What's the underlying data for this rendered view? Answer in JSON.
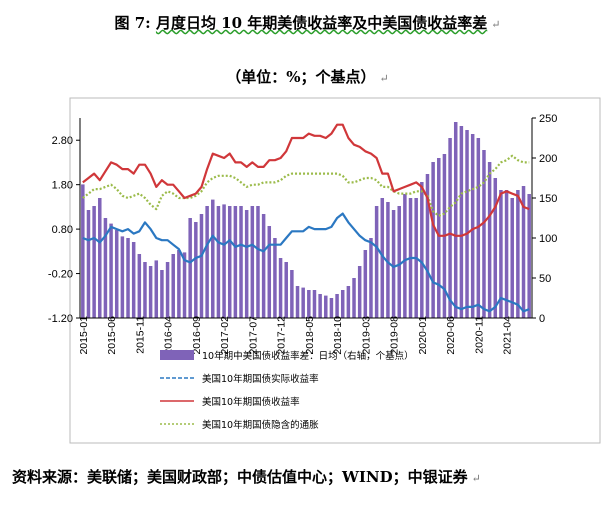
{
  "header": {
    "figure_label": "图 7:",
    "title_text": "月度日均 10 年期美债收益率及中美国债收益率差",
    "unit_text": "（单位：%；个基点）",
    "return_mark": "↵"
  },
  "footer": {
    "source_text": "资料来源：美联储；美国财政部；中债估值中心；WIND；中银证券"
  },
  "colors": {
    "bar": "#7f63b8",
    "actual_line": "#2b78c2",
    "nominal_line": "#d0373a",
    "implied_line": "#9bbb4a"
  },
  "chart_data": {
    "type": "bar+line",
    "x": [
      "2015-01",
      "2015-02",
      "2015-03",
      "2015-04",
      "2015-05",
      "2015-06",
      "2015-07",
      "2015-08",
      "2015-09",
      "2015-10",
      "2015-11",
      "2015-12",
      "2016-01",
      "2016-02",
      "2016-03",
      "2016-04",
      "2016-05",
      "2016-06",
      "2016-07",
      "2016-08",
      "2016-09",
      "2016-10",
      "2016-11",
      "2016-12",
      "2017-01",
      "2017-02",
      "2017-03",
      "2017-04",
      "2017-05",
      "2017-06",
      "2017-07",
      "2017-08",
      "2017-09",
      "2017-10",
      "2017-11",
      "2017-12",
      "2018-01",
      "2018-02",
      "2018-03",
      "2018-04",
      "2018-05",
      "2018-06",
      "2018-07",
      "2018-08",
      "2018-09",
      "2018-10",
      "2018-11",
      "2018-12",
      "2019-01",
      "2019-02",
      "2019-03",
      "2019-04",
      "2019-05",
      "2019-06",
      "2019-07",
      "2019-08",
      "2019-09",
      "2019-10",
      "2019-11",
      "2019-12",
      "2020-01",
      "2020-02",
      "2020-03",
      "2020-04",
      "2020-05",
      "2020-06",
      "2020-07",
      "2020-08",
      "2020-09",
      "2020-10",
      "2020-11",
      "2020-12",
      "2021-01",
      "2021-02",
      "2021-03",
      "2021-04",
      "2021-05",
      "2021-06",
      "2021-07",
      "2021-08"
    ],
    "x_tick_labels": [
      "2015-01",
      "2015-06",
      "2015-11",
      "2016-04",
      "2016-09",
      "2017-02",
      "2017-07",
      "2017-12",
      "2018-05",
      "2018-10",
      "2019-03",
      "2019-08",
      "2020-01",
      "2020-06",
      "2020-11",
      "2021-04"
    ],
    "left_axis": {
      "ticks": [
        "2.80",
        "1.80",
        "0.80",
        "-0.20",
        "-1.20"
      ],
      "ylim": [
        -1.2,
        3.3
      ]
    },
    "right_axis": {
      "ticks": [
        "250",
        "200",
        "150",
        "100",
        "50",
        "0"
      ],
      "ylim": [
        0,
        250
      ]
    },
    "series": [
      {
        "name": "10年期中美国债收益率差：日均（右轴，个基点）",
        "type": "bar",
        "axis": "right",
        "values": [
          167,
          135,
          140,
          150,
          125,
          118,
          110,
          102,
          100,
          95,
          80,
          70,
          65,
          72,
          60,
          70,
          80,
          85,
          82,
          125,
          120,
          130,
          140,
          148,
          140,
          142,
          140,
          140,
          140,
          135,
          140,
          140,
          130,
          115,
          100,
          75,
          70,
          60,
          40,
          38,
          35,
          35,
          30,
          28,
          25,
          30,
          35,
          40,
          50,
          65,
          85,
          100,
          140,
          150,
          145,
          135,
          140,
          155,
          150,
          150,
          170,
          180,
          195,
          200,
          205,
          225,
          245,
          240,
          235,
          230,
          225,
          210,
          195,
          175,
          160,
          160,
          150,
          160,
          165,
          155
        ]
      },
      {
        "name": "美国10年期国债实际收益率",
        "type": "line",
        "axis": "left",
        "values": [
          0.6,
          0.55,
          0.6,
          0.5,
          0.65,
          0.85,
          0.8,
          0.75,
          0.8,
          0.7,
          0.75,
          0.95,
          0.8,
          0.6,
          0.55,
          0.55,
          0.45,
          0.35,
          0.1,
          0.05,
          0.15,
          0.2,
          0.45,
          0.65,
          0.5,
          0.45,
          0.55,
          0.4,
          0.45,
          0.4,
          0.45,
          0.35,
          0.3,
          0.45,
          0.45,
          0.45,
          0.6,
          0.75,
          0.75,
          0.75,
          0.85,
          0.8,
          0.8,
          0.8,
          0.85,
          1.05,
          1.15,
          0.95,
          0.8,
          0.65,
          0.55,
          0.5,
          0.4,
          0.2,
          0.05,
          -0.05,
          0.0,
          0.1,
          0.15,
          0.15,
          0.05,
          -0.15,
          -0.4,
          -0.45,
          -0.55,
          -0.8,
          -0.95,
          -1.0,
          -0.95,
          -0.95,
          -0.9,
          -1.0,
          -1.05,
          -0.95,
          -0.75,
          -0.8,
          -0.85,
          -0.9,
          -1.05,
          -1.0
        ]
      },
      {
        "name": "美国10年期国债收益率",
        "type": "line",
        "axis": "left",
        "values": [
          1.85,
          1.95,
          2.05,
          1.9,
          2.1,
          2.3,
          2.25,
          2.15,
          2.15,
          2.05,
          2.25,
          2.25,
          2.05,
          1.75,
          1.9,
          1.8,
          1.8,
          1.65,
          1.5,
          1.55,
          1.6,
          1.75,
          2.15,
          2.5,
          2.45,
          2.4,
          2.5,
          2.3,
          2.3,
          2.2,
          2.3,
          2.2,
          2.2,
          2.35,
          2.35,
          2.4,
          2.55,
          2.85,
          2.85,
          2.85,
          2.95,
          2.9,
          2.9,
          2.85,
          2.95,
          3.15,
          3.15,
          2.85,
          2.7,
          2.65,
          2.55,
          2.5,
          2.4,
          2.05,
          2.05,
          1.65,
          1.7,
          1.75,
          1.8,
          1.85,
          1.75,
          1.5,
          0.9,
          0.65,
          0.65,
          0.7,
          0.65,
          0.65,
          0.7,
          0.8,
          0.85,
          0.95,
          1.1,
          1.3,
          1.6,
          1.65,
          1.6,
          1.55,
          1.3,
          1.25
        ]
      },
      {
        "name": "美国10年期国债隐含的通胀",
        "type": "line",
        "axis": "left",
        "values": [
          1.5,
          1.6,
          1.7,
          1.7,
          1.75,
          1.8,
          1.7,
          1.55,
          1.5,
          1.55,
          1.6,
          1.5,
          1.35,
          1.25,
          1.55,
          1.65,
          1.6,
          1.5,
          1.5,
          1.5,
          1.55,
          1.65,
          1.85,
          1.95,
          2.0,
          2.0,
          2.0,
          1.95,
          1.85,
          1.75,
          1.8,
          1.8,
          1.85,
          1.85,
          1.85,
          1.9,
          2.0,
          2.05,
          2.05,
          2.05,
          2.05,
          2.05,
          2.05,
          2.05,
          2.05,
          2.05,
          2.0,
          1.85,
          1.85,
          1.9,
          1.95,
          1.95,
          1.9,
          1.75,
          1.75,
          1.65,
          1.6,
          1.6,
          1.6,
          1.65,
          1.65,
          1.55,
          1.2,
          1.1,
          1.15,
          1.3,
          1.4,
          1.6,
          1.65,
          1.7,
          1.75,
          1.85,
          2.05,
          2.15,
          2.3,
          2.35,
          2.45,
          2.35,
          2.3,
          2.3
        ]
      }
    ],
    "legend": [
      "10年期中美国债收益率差：日均（右轴，个基点）",
      "美国10年期国债实际收益率",
      "美国10年期国债收益率",
      "美国10年期国债隐含的通胀"
    ],
    "legend_position": "bottom"
  }
}
